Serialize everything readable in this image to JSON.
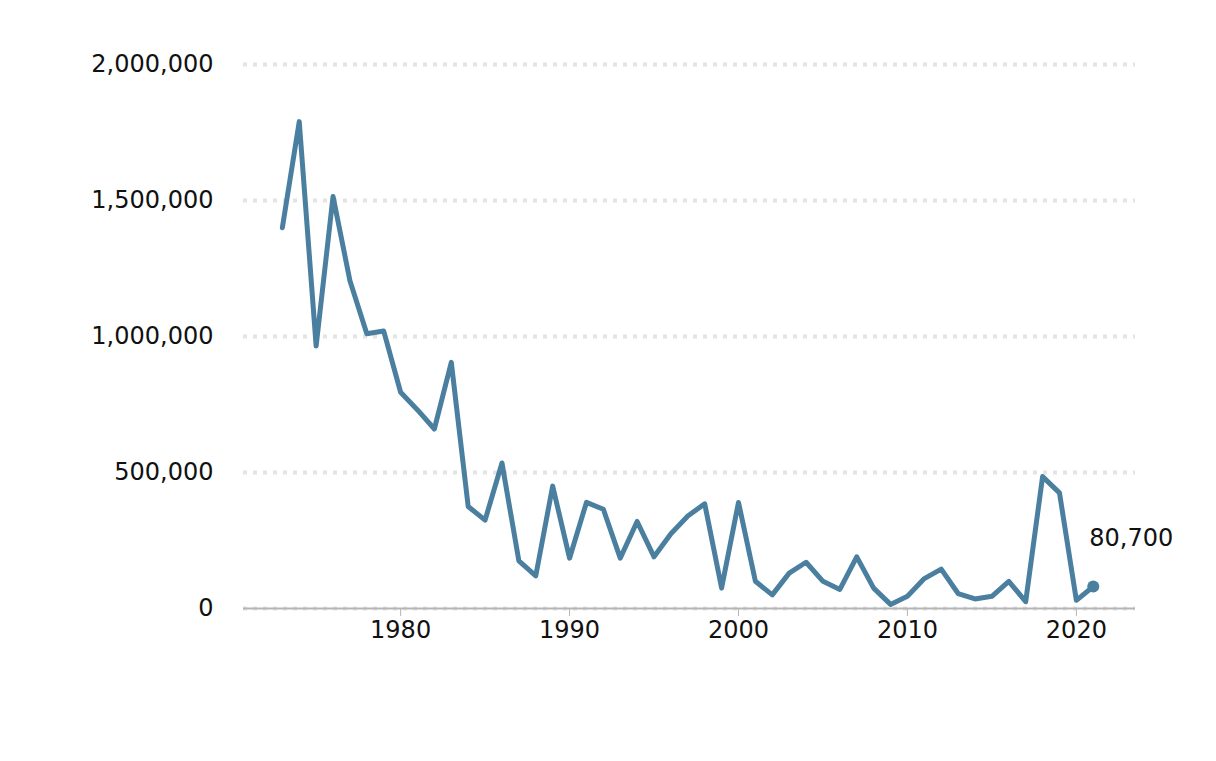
{
  "chart_data": {
    "type": "line",
    "x": [
      1973,
      1974,
      1975,
      1976,
      1977,
      1978,
      1979,
      1980,
      1981,
      1982,
      1983,
      1984,
      1985,
      1986,
      1987,
      1988,
      1989,
      1990,
      1991,
      1992,
      1993,
      1994,
      1995,
      1996,
      1997,
      1998,
      1999,
      2000,
      2001,
      2002,
      2003,
      2004,
      2005,
      2006,
      2007,
      2008,
      2009,
      2010,
      2011,
      2012,
      2013,
      2014,
      2015,
      2016,
      2017,
      2018,
      2019,
      2020,
      2021
    ],
    "values": [
      1400000,
      1790000,
      965000,
      1515000,
      1205000,
      1010000,
      1020000,
      795000,
      730000,
      660000,
      905000,
      375000,
      325000,
      535000,
      175000,
      120000,
      450000,
      185000,
      390000,
      365000,
      185000,
      320000,
      190000,
      275000,
      340000,
      385000,
      75000,
      390000,
      100000,
      50000,
      130000,
      170000,
      100000,
      70000,
      190000,
      75000,
      15000,
      45000,
      110000,
      145000,
      55000,
      35000,
      45000,
      100000,
      25000,
      485000,
      425000,
      30000,
      80700
    ],
    "color": "#4a7fa0",
    "xlim": [
      1970.7,
      2023.5
    ],
    "xticks": [
      1980,
      1990,
      2000,
      2010,
      2020
    ],
    "ylim": [
      0,
      2000000
    ],
    "yticks": [
      0,
      {
        "value": 500000,
        "label": "500,000"
      },
      {
        "value": 1000000,
        "label": "1,000,000"
      },
      {
        "value": 1500000,
        "label": "1,500,000"
      },
      {
        "value": 2000000,
        "label": "2,000,000"
      }
    ],
    "grid": true,
    "annotations": [
      {
        "x": 2021,
        "y": 80700,
        "text": "80,700"
      }
    ]
  }
}
